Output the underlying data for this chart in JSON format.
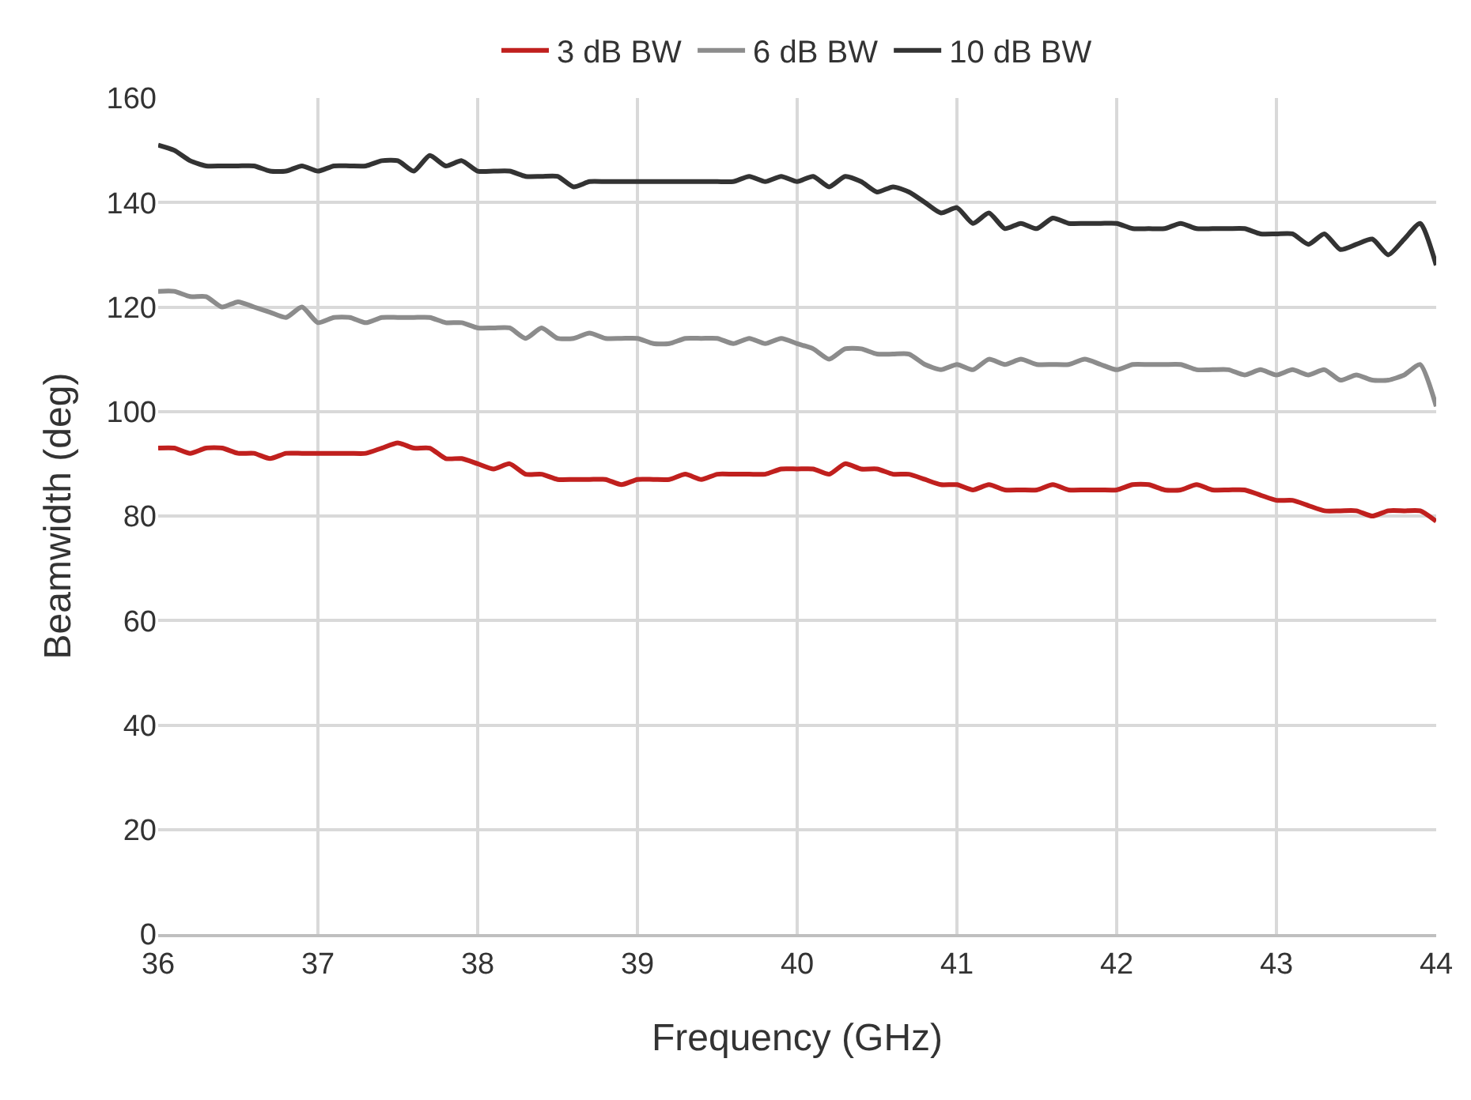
{
  "chart_data": {
    "type": "line",
    "xlabel": "Frequency (GHz)",
    "ylabel": "Beamwidth (deg)",
    "x": [
      36,
      36.1,
      36.2,
      36.3,
      36.4,
      36.5,
      36.6,
      36.7,
      36.8,
      36.9,
      37,
      37.1,
      37.2,
      37.3,
      37.4,
      37.5,
      37.6,
      37.7,
      37.8,
      37.9,
      38,
      38.1,
      38.2,
      38.3,
      38.4,
      38.5,
      38.6,
      38.7,
      38.8,
      38.9,
      39,
      39.1,
      39.2,
      39.3,
      39.4,
      39.5,
      39.6,
      39.7,
      39.8,
      39.9,
      40,
      40.1,
      40.2,
      40.3,
      40.4,
      40.5,
      40.6,
      40.7,
      40.8,
      40.9,
      41,
      41.1,
      41.2,
      41.3,
      41.4,
      41.5,
      41.6,
      41.7,
      41.8,
      41.9,
      42,
      42.1,
      42.2,
      42.3,
      42.4,
      42.5,
      42.6,
      42.7,
      42.8,
      42.9,
      43,
      43.1,
      43.2,
      43.3,
      43.4,
      43.5,
      43.6,
      43.7,
      43.8,
      43.9,
      44
    ],
    "series": [
      {
        "name": "3 dB BW",
        "color": "#c0201e",
        "values": [
          93,
          93,
          92,
          93,
          93,
          92,
          92,
          91,
          92,
          92,
          92,
          92,
          92,
          92,
          93,
          94,
          93,
          93,
          91,
          91,
          90,
          89,
          90,
          88,
          88,
          87,
          87,
          87,
          87,
          86,
          87,
          87,
          87,
          88,
          87,
          88,
          88,
          88,
          88,
          89,
          89,
          89,
          88,
          90,
          89,
          89,
          88,
          88,
          87,
          86,
          86,
          85,
          86,
          85,
          85,
          85,
          86,
          85,
          85,
          85,
          85,
          86,
          86,
          85,
          85,
          86,
          85,
          85,
          85,
          84,
          83,
          83,
          82,
          81,
          81,
          81,
          80,
          81,
          81,
          81,
          79
        ]
      },
      {
        "name": "6 dB BW",
        "color": "#8c8c8c",
        "values": [
          123,
          123,
          122,
          122,
          120,
          121,
          120,
          119,
          118,
          120,
          117,
          118,
          118,
          117,
          118,
          118,
          118,
          118,
          117,
          117,
          116,
          116,
          116,
          114,
          116,
          114,
          114,
          115,
          114,
          114,
          114,
          113,
          113,
          114,
          114,
          114,
          113,
          114,
          113,
          114,
          113,
          112,
          110,
          112,
          112,
          111,
          111,
          111,
          109,
          108,
          109,
          108,
          110,
          109,
          110,
          109,
          109,
          109,
          110,
          109,
          108,
          109,
          109,
          109,
          109,
          108,
          108,
          108,
          107,
          108,
          107,
          108,
          107,
          108,
          106,
          107,
          106,
          106,
          107,
          109,
          101
        ]
      },
      {
        "name": "10 dB BW",
        "color": "#333333",
        "values": [
          151,
          150,
          148,
          147,
          147,
          147,
          147,
          146,
          146,
          147,
          146,
          147,
          147,
          147,
          148,
          148,
          146,
          149,
          147,
          148,
          146,
          146,
          146,
          145,
          145,
          145,
          143,
          144,
          144,
          144,
          144,
          144,
          144,
          144,
          144,
          144,
          144,
          145,
          144,
          145,
          144,
          145,
          143,
          145,
          144,
          142,
          143,
          142,
          140,
          138,
          139,
          136,
          138,
          135,
          136,
          135,
          137,
          136,
          136,
          136,
          136,
          135,
          135,
          135,
          136,
          135,
          135,
          135,
          135,
          134,
          134,
          134,
          132,
          134,
          131,
          132,
          133,
          130,
          133,
          136,
          128
        ]
      }
    ],
    "xlim": [
      36,
      44
    ],
    "xticks": [
      36,
      37,
      38,
      39,
      40,
      41,
      42,
      43,
      44
    ],
    "ylim": [
      0,
      160
    ],
    "yticks": [
      0,
      20,
      40,
      60,
      80,
      100,
      120,
      140,
      160
    ],
    "grid": true,
    "legend": "top",
    "marker": "none",
    "line_style": "solid"
  }
}
